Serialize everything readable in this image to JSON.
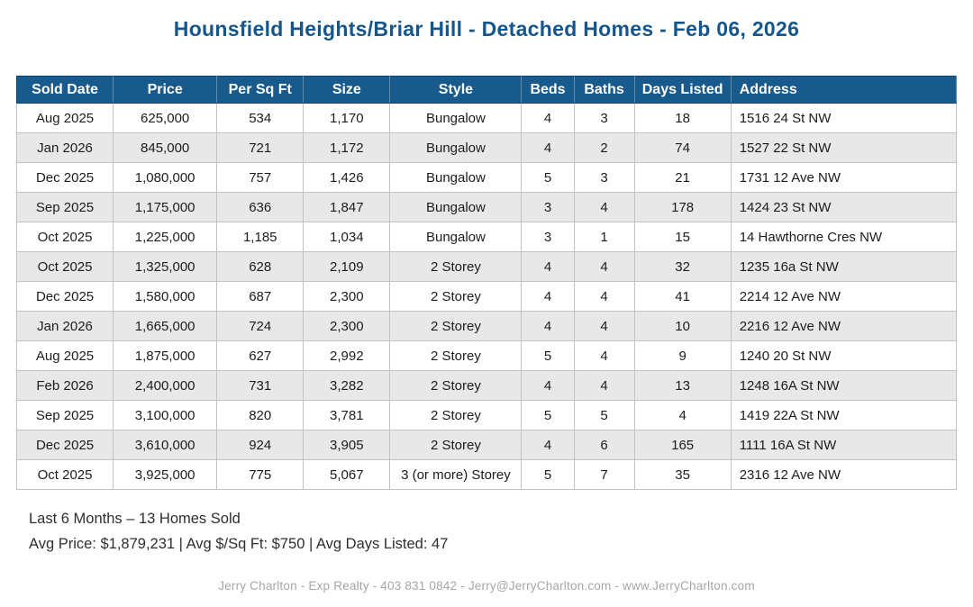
{
  "colors": {
    "title_blue": "#15568c",
    "header_bg": "#185a8c",
    "header_text": "#ffffff",
    "row_alt_bg": "#e8e8e8",
    "border_gray": "#c3c3c3",
    "footer_gray": "#a6a6a6"
  },
  "chart_data": {
    "type": "table",
    "title": "Hounsfield Heights/Briar Hill - Detached Homes - Feb 06, 2026",
    "columns": [
      "Sold Date",
      "Price",
      "Per Sq Ft",
      "Size",
      "Style",
      "Beds",
      "Baths",
      "Days Listed",
      "Address"
    ],
    "rows": [
      [
        "Aug 2025",
        "625,000",
        "534",
        "1,170",
        "Bungalow",
        "4",
        "3",
        "18",
        "1516 24 St NW"
      ],
      [
        "Jan 2026",
        "845,000",
        "721",
        "1,172",
        "Bungalow",
        "4",
        "2",
        "74",
        "1527 22 St NW"
      ],
      [
        "Dec 2025",
        "1,080,000",
        "757",
        "1,426",
        "Bungalow",
        "5",
        "3",
        "21",
        "1731 12 Ave NW"
      ],
      [
        "Sep 2025",
        "1,175,000",
        "636",
        "1,847",
        "Bungalow",
        "3",
        "4",
        "178",
        "1424 23 St NW"
      ],
      [
        "Oct 2025",
        "1,225,000",
        "1,185",
        "1,034",
        "Bungalow",
        "3",
        "1",
        "15",
        "14 Hawthorne Cres NW"
      ],
      [
        "Oct 2025",
        "1,325,000",
        "628",
        "2,109",
        "2 Storey",
        "4",
        "4",
        "32",
        "1235 16a St NW"
      ],
      [
        "Dec 2025",
        "1,580,000",
        "687",
        "2,300",
        "2 Storey",
        "4",
        "4",
        "41",
        "2214 12 Ave NW"
      ],
      [
        "Jan 2026",
        "1,665,000",
        "724",
        "2,300",
        "2 Storey",
        "4",
        "4",
        "10",
        "2216 12 Ave NW"
      ],
      [
        "Aug 2025",
        "1,875,000",
        "627",
        "2,992",
        "2 Storey",
        "5",
        "4",
        "9",
        "1240 20 St NW"
      ],
      [
        "Feb 2026",
        "2,400,000",
        "731",
        "3,282",
        "2 Storey",
        "4",
        "4",
        "13",
        "1248 16A St NW"
      ],
      [
        "Sep 2025",
        "3,100,000",
        "820",
        "3,781",
        "2 Storey",
        "5",
        "5",
        "4",
        "1419 22A St NW"
      ],
      [
        "Dec 2025",
        "3,610,000",
        "924",
        "3,905",
        "2 Storey",
        "4",
        "6",
        "165",
        "1111 16A St NW"
      ],
      [
        "Oct 2025",
        "3,925,000",
        "775",
        "5,067",
        "3 (or more) Storey",
        "5",
        "7",
        "35",
        "2316 12 Ave NW"
      ]
    ]
  },
  "summary": {
    "line1": "Last 6 Months – 13 Homes Sold",
    "line2": "Avg Price: $1,879,231 | Avg $/Sq Ft: $750 | Avg Days Listed: 47"
  },
  "footer": {
    "contact_line": "Jerry Charlton - Exp Realty - 403 831 0842 - Jerry@JerryCharlton.com - www.JerryCharlton.com"
  }
}
